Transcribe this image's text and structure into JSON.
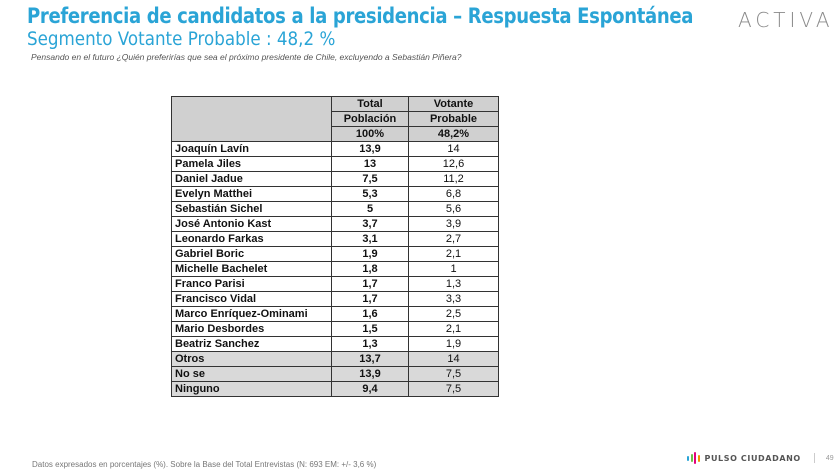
{
  "header": {
    "title": "Preferencia de candidatos a la presidencia – Respuesta Espontánea",
    "subtitle": "Segmento Votante Probable : 48,2 %",
    "question": "Pensando en el futuro ¿Quién preferirías que sea el próximo presidente de Chile, excluyendo a Sebastián Piñera?",
    "logo": "ACTIVA"
  },
  "table": {
    "headers": [
      {
        "total": "Total",
        "votante": "Votante"
      },
      {
        "total": "Población",
        "votante": "Probable"
      },
      {
        "total": "100%",
        "votante": "48,2%"
      }
    ],
    "rows": [
      {
        "name": "Joaquín Lavín",
        "total": "13,9",
        "votante": "14"
      },
      {
        "name": "Pamela Jiles",
        "total": "13",
        "votante": "12,6"
      },
      {
        "name": "Daniel Jadue",
        "total": "7,5",
        "votante": "11,2"
      },
      {
        "name": "Evelyn Matthei",
        "total": "5,3",
        "votante": "6,8"
      },
      {
        "name": "Sebastián Sichel",
        "total": "5",
        "votante": "5,6"
      },
      {
        "name": "José Antonio Kast",
        "total": "3,7",
        "votante": "3,9"
      },
      {
        "name": "Leonardo Farkas",
        "total": "3,1",
        "votante": "2,7"
      },
      {
        "name": "Gabriel Boric",
        "total": "1,9",
        "votante": "2,1"
      },
      {
        "name": "Michelle Bachelet",
        "total": "1,8",
        "votante": "1"
      },
      {
        "name": "Franco Parisi",
        "total": "1,7",
        "votante": "1,3"
      },
      {
        "name": "Francisco Vidal",
        "total": "1,7",
        "votante": "3,3"
      },
      {
        "name": "Marco Enríquez-Ominami",
        "total": "1,6",
        "votante": "2,5"
      },
      {
        "name": "Mario Desbordes",
        "total": "1,5",
        "votante": "2,1"
      },
      {
        "name": "Beatriz Sanchez",
        "total": "1,3",
        "votante": "1,9"
      },
      {
        "name": "Otros",
        "total": "13,7",
        "votante": "14"
      },
      {
        "name": "No se",
        "total": "13,9",
        "votante": "7,5"
      },
      {
        "name": "Ninguno",
        "total": "9,4",
        "votante": "7,5"
      }
    ]
  },
  "footer": {
    "note": "Datos expresados en porcentajes (%). Sobre la Base del Total Entrevistas (N: 693  EM: +/-  3,6 %)",
    "brand": "PULSO CIUDADANO",
    "page": "49",
    "brand_colors": [
      "#2aa4d6",
      "#6cc04a",
      "#e4007c",
      "#f39200"
    ]
  },
  "colors": {
    "title": "#2aa4d6",
    "header_fill": "#d0d0d0",
    "shade_fill": "#d9d9d9"
  }
}
